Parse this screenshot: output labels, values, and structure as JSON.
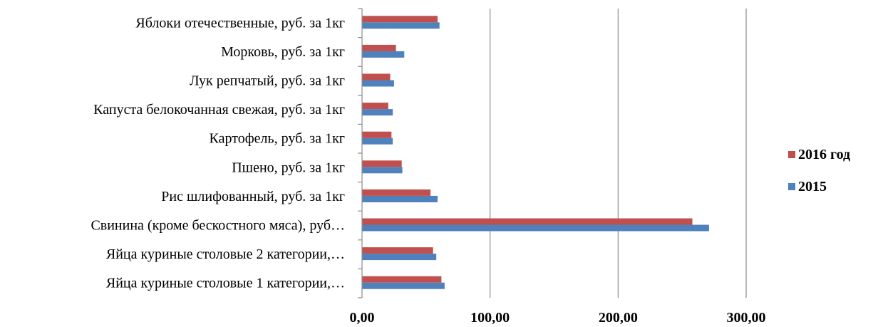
{
  "chart_data": {
    "type": "bar",
    "orientation": "horizontal",
    "categories": [
      "Яйца куриные столовые 1 категории,…",
      "Яйца куриные столовые 2 категории,…",
      "Свинина (кроме бескостного мяса), руб…",
      "Рис шлифованный, руб. за 1кг",
      "Пшено, руб. за 1кг",
      "Картофель, руб. за 1кг",
      "Капуста белокочанная свежая, руб. за 1кг",
      "Лук репчатый, руб. за 1кг",
      "Морковь, руб. за 1кг",
      "Яблоки отечественные, руб. за 1кг"
    ],
    "series": [
      {
        "name": "2015",
        "color": "#4f81bd",
        "values": [
          64.5,
          58.0,
          271.0,
          59.0,
          31.5,
          24.0,
          24.0,
          25.0,
          33.0,
          60.5
        ]
      },
      {
        "name": "2016 год",
        "color": "#c0504d",
        "values": [
          62.0,
          55.5,
          258.0,
          53.5,
          31.0,
          23.0,
          20.5,
          22.0,
          26.5,
          59.0
        ]
      }
    ],
    "xlim": [
      0,
      300
    ],
    "xticks": [
      0,
      100,
      200,
      300
    ],
    "xtick_labels": [
      "0,00",
      "100,00",
      "200,00",
      "300,00"
    ],
    "grid": "vertical",
    "legend_position": "right",
    "title": "",
    "xlabel": "",
    "ylabel": ""
  }
}
